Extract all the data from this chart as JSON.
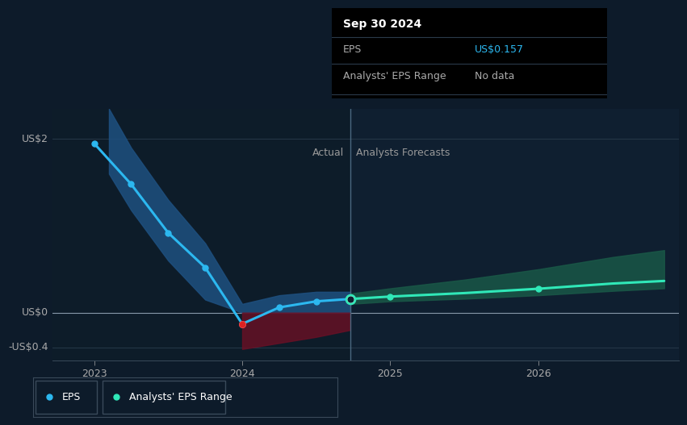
{
  "bg_color": "#0d1b2a",
  "plot_bg_color": "#0f1f30",
  "grid_color": "#263848",
  "ylim": [
    -0.55,
    2.35
  ],
  "xlim_start": 2022.72,
  "xlim_end": 2026.95,
  "xticks": [
    2023,
    2024,
    2025,
    2026
  ],
  "divider_x": 2024.73,
  "actual_label": "Actual",
  "forecast_label": "Analysts Forecasts",
  "eps_color": "#2cb8f0",
  "forecast_color": "#30e8b8",
  "band_blue": "#1e5080",
  "band_red": "#6a1025",
  "band_teal": "#1a5a48",
  "ylabel_top": "US$2",
  "ylabel_mid": "US$0",
  "ylabel_bot": "-US$0.4",
  "tooltip_title": "Sep 30 2024",
  "tooltip_eps_label": "EPS",
  "tooltip_eps_value": "US$0.157",
  "tooltip_range_label": "Analysts' EPS Range",
  "tooltip_range_value": "No data",
  "legend_eps": "EPS",
  "legend_range": "Analysts' EPS Range",
  "actual_x": [
    2023.0,
    2023.25,
    2023.5,
    2023.75,
    2024.0,
    2024.25,
    2024.5,
    2024.73
  ],
  "actual_y": [
    1.95,
    1.48,
    0.92,
    0.52,
    -0.13,
    0.06,
    0.13,
    0.157
  ],
  "band_up_x": [
    2023.1,
    2023.25,
    2023.5,
    2023.75,
    2024.0,
    2024.25,
    2024.5,
    2024.73
  ],
  "band_up_y": [
    2.35,
    1.9,
    1.3,
    0.8,
    0.1,
    0.2,
    0.24,
    0.24
  ],
  "band_lo_x": [
    2023.1,
    2023.25,
    2023.5,
    2023.75,
    2024.0,
    2024.25,
    2024.5,
    2024.73
  ],
  "band_lo_y": [
    1.6,
    1.18,
    0.6,
    0.15,
    -0.42,
    -0.35,
    -0.28,
    -0.2
  ],
  "forecast_x": [
    2024.73,
    2025.0,
    2025.5,
    2026.0,
    2026.5,
    2026.85
  ],
  "forecast_y": [
    0.157,
    0.185,
    0.225,
    0.275,
    0.335,
    0.365
  ],
  "fcast_band_up": [
    0.22,
    0.28,
    0.38,
    0.5,
    0.64,
    0.72
  ],
  "fcast_band_lo": [
    0.1,
    0.13,
    0.16,
    0.2,
    0.25,
    0.28
  ]
}
